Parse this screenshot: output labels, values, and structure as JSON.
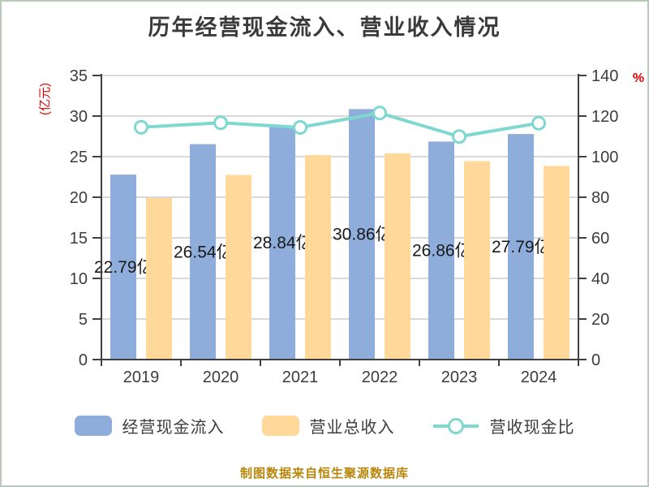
{
  "chart_data": {
    "type": "bar",
    "title": "历年经营现金流入、营业收入情况",
    "categories": [
      "2019",
      "2020",
      "2021",
      "2022",
      "2023",
      "2024"
    ],
    "series": [
      {
        "name": "经营现金流入",
        "type": "bar",
        "axis": "left",
        "color": "#8fadda",
        "values": [
          22.79,
          26.54,
          28.84,
          30.86,
          26.86,
          27.79
        ],
        "labels": [
          "22.79亿",
          "26.54亿",
          "28.84亿",
          "30.86亿",
          "26.86亿",
          "27.79亿"
        ]
      },
      {
        "name": "营业总收入",
        "type": "bar",
        "axis": "left",
        "color": "#ffd89a",
        "values": [
          19.9,
          22.75,
          25.2,
          25.4,
          24.45,
          23.85
        ]
      },
      {
        "name": "营收现金比",
        "type": "line",
        "axis": "right",
        "color": "#7fd8d0",
        "marker_fill": "#ffffff",
        "values": [
          114.5,
          116.7,
          114.4,
          121.5,
          109.9,
          116.5
        ]
      }
    ],
    "left_axis": {
      "unit": "(亿元)",
      "min": 0,
      "max": 35,
      "step": 5
    },
    "right_axis": {
      "unit": "%",
      "min": 0,
      "max": 140,
      "step": 20
    },
    "grid": "on",
    "legend_position": "bottom",
    "source_note": "制图数据来自恒生聚源数据库"
  },
  "styles": {
    "title_color": "#3a3a3a",
    "tick_color": "#3c3c3c",
    "axis_color": "#404040",
    "grid_color": "#d9d9d9",
    "unit_color": "#e60000",
    "bar_label_color": "#1a1a1a",
    "footer_color": "#b8860b"
  }
}
